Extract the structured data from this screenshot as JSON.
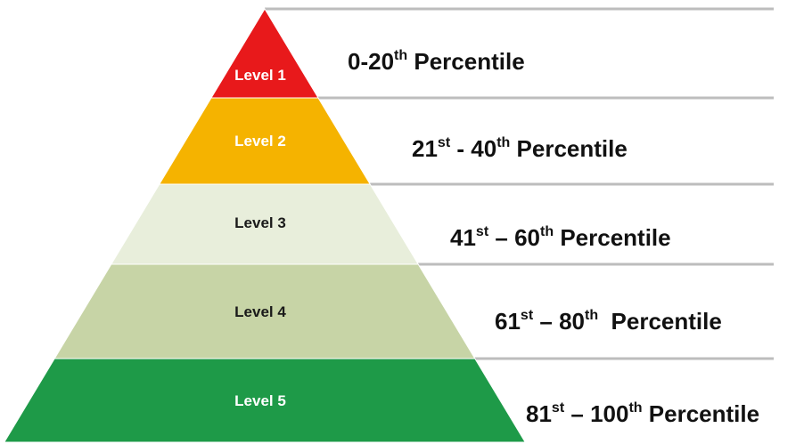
{
  "levels": [
    {
      "label": "Level 1",
      "fill": "#e8191b",
      "label_color": "#ffffff",
      "desc": [
        {
          "t": "0-20"
        },
        {
          "sup": "th"
        },
        {
          "t": " Percentile"
        }
      ]
    },
    {
      "label": "Level 2",
      "fill": "#f5b300",
      "label_color": "#ffffff",
      "desc": [
        {
          "t": "21"
        },
        {
          "sup": "st"
        },
        {
          "t": " - 40"
        },
        {
          "sup": "th"
        },
        {
          "t": " Percentile"
        }
      ]
    },
    {
      "label": "Level 3",
      "fill": "#e8eedb",
      "label_color": "#1a1a1a",
      "desc": [
        {
          "t": "41"
        },
        {
          "sup": "st"
        },
        {
          "t": " – 60"
        },
        {
          "sup": "th"
        },
        {
          "t": " Percentile"
        }
      ]
    },
    {
      "label": "Level 4",
      "fill": "#c7d4a6",
      "label_color": "#1a1a1a",
      "desc": [
        {
          "t": "61"
        },
        {
          "sup": "st"
        },
        {
          "t": " – 80"
        },
        {
          "sup": "th"
        },
        {
          "t": "  Percentile"
        }
      ]
    },
    {
      "label": "Level 5",
      "fill": "#1e9a48",
      "label_color": "#ffffff",
      "desc": [
        {
          "t": "81"
        },
        {
          "sup": "st"
        },
        {
          "t": " – 100"
        },
        {
          "sup": "th"
        },
        {
          "t": " Percentile"
        }
      ]
    }
  ]
}
